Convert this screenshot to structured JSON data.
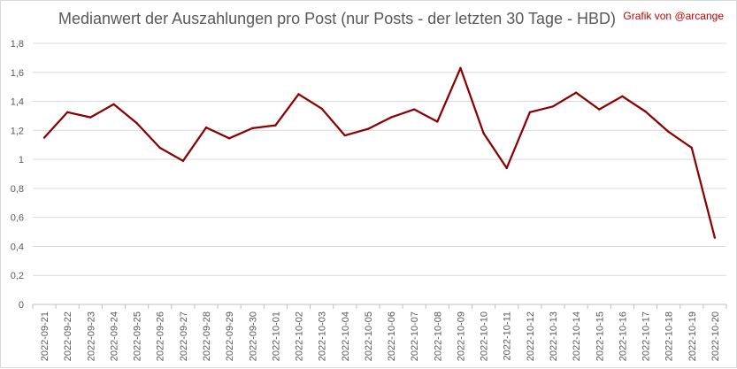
{
  "chart_data": {
    "type": "line",
    "title": "Medianwert der Auszahlungen pro Post (nur Posts - der letzten 30 Tage - HBD)",
    "credit": "Grafik von @arcange",
    "xlabel": "",
    "ylabel": "",
    "ylim": [
      0,
      1.8
    ],
    "y_ticks": [
      "0",
      "0,2",
      "0,4",
      "0,6",
      "0,8",
      "1",
      "1,2",
      "1,4",
      "1,6",
      "1,8"
    ],
    "grid": true,
    "legend": "none",
    "line_color": "#8b0000",
    "categories": [
      "2022-09-21",
      "2022-09-22",
      "2022-09-23",
      "2022-09-24",
      "2022-09-25",
      "2022-09-26",
      "2022-09-27",
      "2022-09-28",
      "2022-09-29",
      "2022-09-30",
      "2022-10-01",
      "2022-10-02",
      "2022-10-03",
      "2022-10-04",
      "2022-10-05",
      "2022-10-06",
      "2022-10-07",
      "2022-10-08",
      "2022-10-09",
      "2022-10-10",
      "2022-10-11",
      "2022-10-12",
      "2022-10-13",
      "2022-10-14",
      "2022-10-15",
      "2022-10-16",
      "2022-10-17",
      "2022-10-18",
      "2022-10-19",
      "2022-10-20"
    ],
    "values": [
      1.15,
      1.325,
      1.29,
      1.38,
      1.25,
      1.08,
      0.99,
      1.22,
      1.145,
      1.215,
      1.235,
      1.45,
      1.35,
      1.165,
      1.21,
      1.29,
      1.345,
      1.26,
      1.63,
      1.18,
      0.94,
      1.325,
      1.365,
      1.46,
      1.345,
      1.435,
      1.33,
      1.19,
      1.08,
      0.46
    ]
  }
}
